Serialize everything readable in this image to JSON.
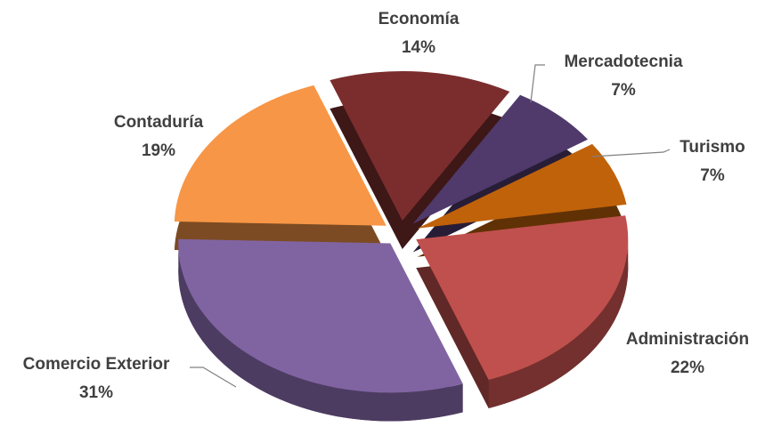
{
  "chart_data": {
    "type": "pie",
    "categories": [
      "Economía",
      "Mercadotecnia",
      "Turismo",
      "Administración",
      "Comercio Exterior",
      "Contaduría"
    ],
    "values": [
      14,
      7,
      7,
      22,
      31,
      19
    ],
    "value_labels": [
      "14%",
      "7%",
      "7%",
      "22%",
      "31%",
      "19%"
    ],
    "colors": [
      "#7b2d2d",
      "#4f3a6b",
      "#c0620a",
      "#c0504d",
      "#8064a2",
      "#f79646"
    ]
  }
}
